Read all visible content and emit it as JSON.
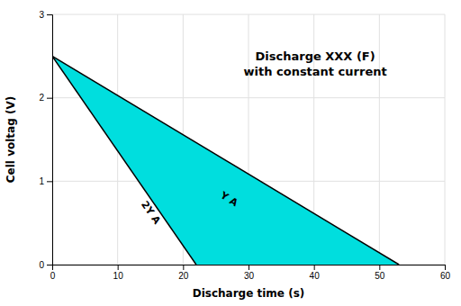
{
  "chart_data": {
    "type": "area",
    "title": "Discharge XXX (F)",
    "subtitle": "with constant current",
    "x_label": "Discharge time (s)",
    "y_label": "Cell voltag (V)",
    "color": "#00DEDE",
    "series": [
      {
        "x": [
          0,
          22
        ],
        "values": [
          2.5,
          0
        ],
        "color": "#000000"
      },
      {
        "x": [
          0,
          53
        ],
        "values": [
          2.5,
          0
        ],
        "color": "#000000"
      }
    ],
    "annotations": [
      {
        "text": "2Y A",
        "x": 15,
        "y": 0.62
      },
      {
        "text": "Y A",
        "x": 27,
        "y": 0.78
      }
    ],
    "xlim": [
      0,
      60
    ],
    "ylim": [
      0,
      3
    ],
    "xticks": [
      0,
      10,
      20,
      30,
      40,
      50,
      60
    ],
    "yticks": [
      0,
      1,
      2,
      3
    ],
    "grid": true
  }
}
